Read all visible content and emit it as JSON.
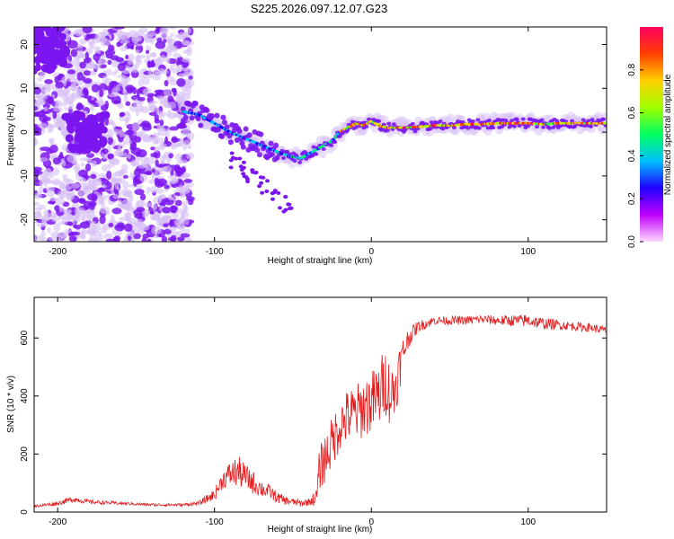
{
  "title": "S225.2026.097.12.07.G23",
  "colors": {
    "scatter_strong": "#7b16f0",
    "scatter_light": "#d7bff5",
    "snr_line": "#e31a1c",
    "colorbar": [
      "#ffd9ff",
      "#c000ff",
      "#2000ff",
      "#00c0ff",
      "#00ff60",
      "#a0ff00",
      "#ffd000",
      "#ff4000",
      "#ff0060"
    ]
  },
  "chart_data": [
    {
      "type": "scatter",
      "name": "spectrogram",
      "xlabel": "Height of straight line (km)",
      "ylabel": "Frequency (Hz)",
      "xlim": [
        -215,
        150
      ],
      "ylim": [
        -25,
        24
      ],
      "xticks": [
        -200,
        -100,
        0,
        100
      ],
      "yticks": [
        -20,
        -10,
        0,
        10,
        20
      ],
      "ridge": {
        "x": [
          -125,
          -110,
          -100,
          -90,
          -80,
          -70,
          -60,
          -52,
          -45,
          -40,
          -35,
          -30,
          -25,
          -20,
          -15,
          -10,
          -5,
          0,
          5,
          10,
          20,
          30,
          40,
          50,
          60,
          70,
          80,
          90,
          100,
          110,
          120,
          130,
          140,
          150
        ],
        "y": [
          5,
          4,
          2,
          0,
          -1.5,
          -3,
          -4.5,
          -5.5,
          -6,
          -5,
          -4,
          -3,
          -2,
          0,
          1,
          2,
          1.5,
          2.5,
          1.5,
          1,
          1,
          1.2,
          1.5,
          1.5,
          1.8,
          1.8,
          2,
          2,
          2,
          1.8,
          2,
          2,
          2,
          2
        ]
      },
      "colorbar": {
        "label": "Normalized spectral amplitude",
        "range": [
          0,
          1
        ],
        "ticks": [
          "0.0",
          "0.2",
          "0.4",
          "0.6",
          "0.8"
        ]
      }
    },
    {
      "type": "line",
      "name": "snr",
      "xlabel": "Height of straight line (km)",
      "ylabel": "SNR (10 * v/v)",
      "xlim": [
        -215,
        150
      ],
      "ylim": [
        0,
        740
      ],
      "xticks": [
        -200,
        -100,
        0,
        100
      ],
      "yticks": [
        0,
        200,
        400,
        600
      ],
      "series": [
        {
          "name": "SNR",
          "x": [
            -215,
            -200,
            -190,
            -180,
            -160,
            -140,
            -120,
            -110,
            -100,
            -95,
            -90,
            -85,
            -80,
            -75,
            -70,
            -65,
            -60,
            -55,
            -50,
            -45,
            -40,
            -35,
            -33,
            -30,
            -25,
            -20,
            -15,
            -10,
            -5,
            0,
            5,
            8,
            10,
            12,
            15,
            18,
            20,
            22,
            25,
            30,
            35,
            40,
            50,
            60,
            70,
            80,
            90,
            100,
            110,
            120,
            130,
            140,
            150
          ],
          "y": [
            20,
            30,
            45,
            35,
            30,
            25,
            25,
            30,
            60,
            110,
            130,
            140,
            120,
            100,
            80,
            70,
            50,
            40,
            35,
            30,
            35,
            50,
            150,
            180,
            240,
            300,
            330,
            340,
            360,
            380,
            400,
            450,
            450,
            400,
            420,
            500,
            540,
            580,
            610,
            640,
            650,
            660,
            660,
            660,
            665,
            660,
            660,
            660,
            650,
            645,
            640,
            635,
            625
          ],
          "noise": [
            10,
            15,
            20,
            15,
            10,
            10,
            10,
            15,
            40,
            60,
            90,
            110,
            90,
            80,
            60,
            50,
            40,
            30,
            25,
            25,
            25,
            60,
            160,
            170,
            180,
            180,
            190,
            200,
            210,
            220,
            230,
            240,
            240,
            220,
            200,
            160,
            130,
            90,
            60,
            40,
            35,
            30,
            30,
            30,
            30,
            35,
            40,
            45,
            40,
            35,
            30,
            30,
            30
          ]
        }
      ]
    }
  ]
}
